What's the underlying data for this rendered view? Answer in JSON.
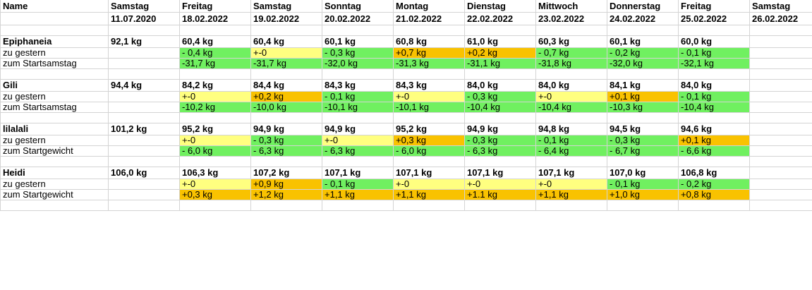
{
  "header": {
    "name_label": "Name",
    "columns": [
      {
        "day": "Samstag",
        "date": "11.07.2020"
      },
      {
        "day": "Freitag",
        "date": "18.02.2022"
      },
      {
        "day": "Samstag",
        "date": "19.02.2022"
      },
      {
        "day": "Sonntag",
        "date": "20.02.2022"
      },
      {
        "day": "Montag",
        "date": "21.02.2022"
      },
      {
        "day": "Dienstag",
        "date": "22.02.2022"
      },
      {
        "day": "Mittwoch",
        "date": "23.02.2022"
      },
      {
        "day": "Donnerstag",
        "date": "24.02.2022"
      },
      {
        "day": "Freitag",
        "date": "25.02.2022"
      },
      {
        "day": "Samstag",
        "date": "26.02.2022"
      }
    ]
  },
  "colors": {
    "lime": "#70f060",
    "yellow": "#ffff80",
    "orange": "#f9c200"
  },
  "people": [
    {
      "name": "Epiphaneia",
      "weights": [
        "92,1 kg",
        "60,4 kg",
        "60,4 kg",
        "60,1 kg",
        "60,8 kg",
        "61,0 kg",
        "60,3 kg",
        "60,1 kg",
        "60,0 kg",
        ""
      ],
      "diff_label": "zu gestern",
      "diffs": [
        {
          "v": "",
          "c": ""
        },
        {
          "v": "- 0,4 kg",
          "c": "lime"
        },
        {
          "v": "+-0",
          "c": "yellow"
        },
        {
          "v": "- 0,3 kg",
          "c": "lime"
        },
        {
          "v": "+0,7 kg",
          "c": "orange"
        },
        {
          "v": "+0,2 kg",
          "c": "orange"
        },
        {
          "v": "- 0,7 kg",
          "c": "lime"
        },
        {
          "v": "- 0,2 kg",
          "c": "lime"
        },
        {
          "v": "- 0,1 kg",
          "c": "lime"
        },
        {
          "v": "",
          "c": ""
        }
      ],
      "total_label": "zum Startsamstag",
      "totals": [
        {
          "v": "",
          "c": ""
        },
        {
          "v": "-31,7 kg",
          "c": "lime"
        },
        {
          "v": "-31,7 kg",
          "c": "lime"
        },
        {
          "v": "-32,0 kg",
          "c": "lime"
        },
        {
          "v": "-31,3 kg",
          "c": "lime"
        },
        {
          "v": "-31,1 kg",
          "c": "lime"
        },
        {
          "v": "-31,8 kg",
          "c": "lime"
        },
        {
          "v": "-32,0 kg",
          "c": "lime"
        },
        {
          "v": "-32,1 kg",
          "c": "lime"
        },
        {
          "v": "",
          "c": ""
        }
      ]
    },
    {
      "name": "Gili",
      "weights": [
        "94,4 kg",
        "84,2 kg",
        "84,4 kg",
        "84,3 kg",
        "84,3 kg",
        "84,0 kg",
        "84,0 kg",
        "84,1 kg",
        "84,0 kg",
        ""
      ],
      "diff_label": "zu gestern",
      "diffs": [
        {
          "v": "",
          "c": ""
        },
        {
          "v": "+-0",
          "c": "yellow"
        },
        {
          "v": "+0,2 kg",
          "c": "orange"
        },
        {
          "v": "- 0,1 kg",
          "c": "lime"
        },
        {
          "v": "+-0",
          "c": "yellow"
        },
        {
          "v": "- 0,3 kg",
          "c": "lime"
        },
        {
          "v": "+-0",
          "c": "yellow"
        },
        {
          "v": "+0,1 kg",
          "c": "orange"
        },
        {
          "v": "- 0,1 kg",
          "c": "lime"
        },
        {
          "v": "",
          "c": ""
        }
      ],
      "total_label": "zum Startsamstag",
      "totals": [
        {
          "v": "",
          "c": ""
        },
        {
          "v": "-10,2 kg",
          "c": "lime"
        },
        {
          "v": "-10,0 kg",
          "c": "lime"
        },
        {
          "v": "-10,1 kg",
          "c": "lime"
        },
        {
          "v": "-10,1 kg",
          "c": "lime"
        },
        {
          "v": "-10,4 kg",
          "c": "lime"
        },
        {
          "v": "-10,4 kg",
          "c": "lime"
        },
        {
          "v": "-10,3 kg",
          "c": "lime"
        },
        {
          "v": "-10,4 kg",
          "c": "lime"
        },
        {
          "v": "",
          "c": ""
        }
      ]
    },
    {
      "name": "lilalali",
      "weights": [
        "101,2 kg",
        "95,2 kg",
        "94,9 kg",
        "94,9 kg",
        "95,2 kg",
        "94,9 kg",
        "94,8 kg",
        "94,5 kg",
        "94,6 kg",
        ""
      ],
      "diff_label": "zu gestern",
      "diffs": [
        {
          "v": "",
          "c": ""
        },
        {
          "v": "+-0",
          "c": "yellow"
        },
        {
          "v": "- 0,3 kg",
          "c": "lime"
        },
        {
          "v": "+-0",
          "c": "yellow"
        },
        {
          "v": "+0,3 kg",
          "c": "orange"
        },
        {
          "v": "- 0,3 kg",
          "c": "lime"
        },
        {
          "v": "- 0,1 kg",
          "c": "lime"
        },
        {
          "v": "- 0,3 kg",
          "c": "lime"
        },
        {
          "v": "+0,1 kg",
          "c": "orange"
        },
        {
          "v": "",
          "c": ""
        }
      ],
      "total_label": "zum Startgewicht",
      "totals": [
        {
          "v": "",
          "c": ""
        },
        {
          "v": "- 6,0 kg",
          "c": "lime"
        },
        {
          "v": "- 6,3 kg",
          "c": "lime"
        },
        {
          "v": "- 6,3 kg",
          "c": "lime"
        },
        {
          "v": "- 6,0 kg",
          "c": "lime"
        },
        {
          "v": "- 6,3 kg",
          "c": "lime"
        },
        {
          "v": "- 6,4 kg",
          "c": "lime"
        },
        {
          "v": "- 6,7 kg",
          "c": "lime"
        },
        {
          "v": "- 6,6 kg",
          "c": "lime"
        },
        {
          "v": "",
          "c": ""
        }
      ]
    },
    {
      "name": "Heidi",
      "weights": [
        "106,0 kg",
        "106,3 kg",
        "107,2 kg",
        "107,1 kg",
        "107,1 kg",
        "107,1 kg",
        "107,1 kg",
        "107,0 kg",
        "106,8 kg",
        ""
      ],
      "diff_label": "zu gestern",
      "diffs": [
        {
          "v": "",
          "c": ""
        },
        {
          "v": "+-0",
          "c": "yellow"
        },
        {
          "v": "+0,9 kg",
          "c": "orange"
        },
        {
          "v": "- 0,1 kg",
          "c": "lime"
        },
        {
          "v": "+-0",
          "c": "yellow"
        },
        {
          "v": "+-0",
          "c": "yellow"
        },
        {
          "v": "+-0",
          "c": "yellow"
        },
        {
          "v": "- 0,1 kg",
          "c": "lime"
        },
        {
          "v": "- 0,2 kg",
          "c": "lime"
        },
        {
          "v": "",
          "c": ""
        }
      ],
      "total_label": "zum Startgewicht",
      "totals": [
        {
          "v": "",
          "c": ""
        },
        {
          "v": "+0,3 kg",
          "c": "orange"
        },
        {
          "v": "+1,2 kg",
          "c": "orange"
        },
        {
          "v": "+1,1 kg",
          "c": "orange"
        },
        {
          "v": "+1,1 kg",
          "c": "orange"
        },
        {
          "v": "+1.1 kg",
          "c": "orange"
        },
        {
          "v": "+1,1 kg",
          "c": "orange"
        },
        {
          "v": "+1,0 kg",
          "c": "orange"
        },
        {
          "v": "+0,8 kg",
          "c": "orange"
        },
        {
          "v": "",
          "c": ""
        }
      ]
    }
  ]
}
